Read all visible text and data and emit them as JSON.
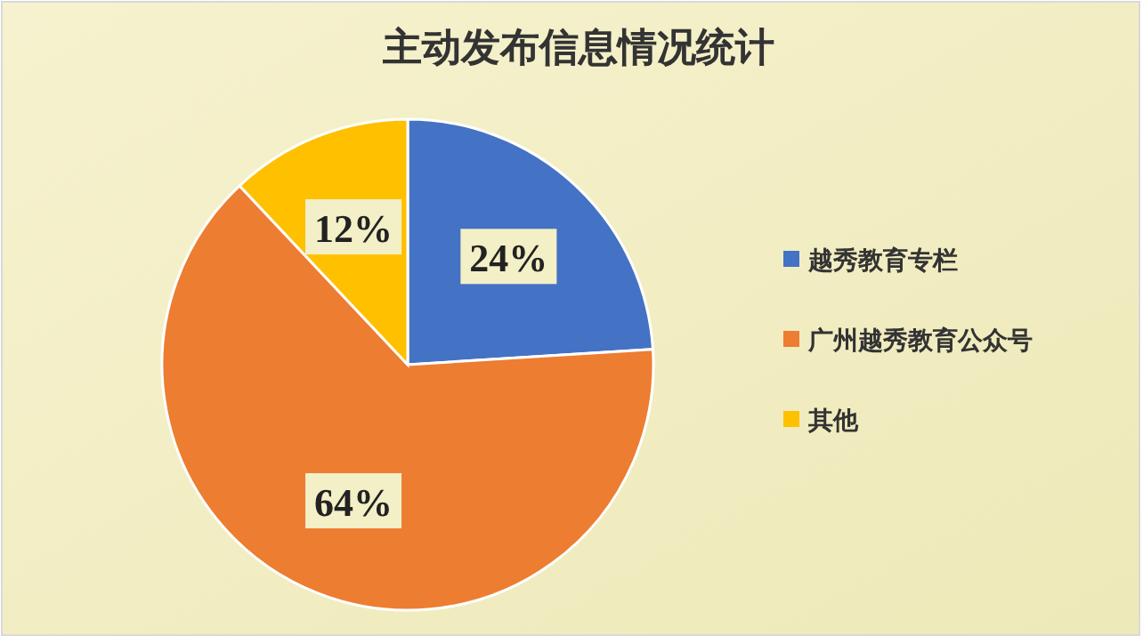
{
  "chart_data": {
    "type": "pie",
    "title": "主动发布信息情况统计",
    "categories": [
      "越秀教育专栏",
      "广州越秀教育公众号",
      "其他"
    ],
    "values": [
      24,
      64,
      12
    ],
    "colors": [
      "#4472c4",
      "#ed7d31",
      "#ffc000"
    ],
    "value_labels": [
      "24%",
      "64%",
      "12%"
    ],
    "legend": "right"
  }
}
